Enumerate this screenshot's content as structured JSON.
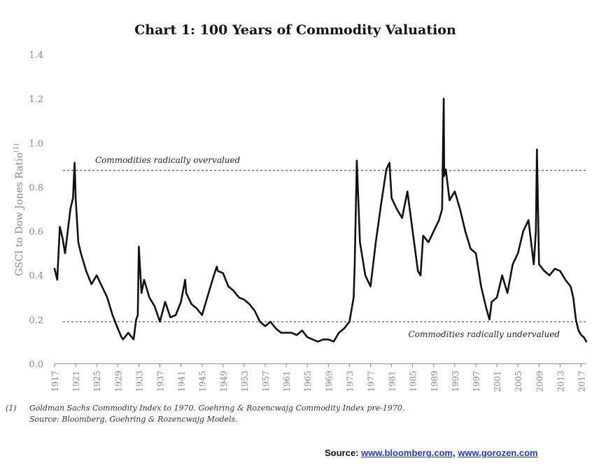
{
  "chart_data": {
    "type": "line",
    "title": "Chart 1: 100 Years of Commodity Valuation",
    "ylabel": "GSCI to Dow Jones Ratio",
    "ylabel_superscript": "(1)",
    "xlabel": "",
    "ylim": [
      0,
      1.4
    ],
    "xlim": [
      1917,
      2018
    ],
    "yticks": [
      "0.0",
      "0.2",
      "0.4",
      "0.6",
      "0.8",
      "1.0",
      "1.2",
      "1.4"
    ],
    "xticks": [
      "1917",
      "1921",
      "1925",
      "1929",
      "1933",
      "1937",
      "1941",
      "1945",
      "1949",
      "1953",
      "1957",
      "1961",
      "1965",
      "1969",
      "1973",
      "1977",
      "1981",
      "1985",
      "1989",
      "1993",
      "1997",
      "2001",
      "2005",
      "2009",
      "2013",
      "2017"
    ],
    "grid": false,
    "line_color": "#111111",
    "reference_lines": [
      {
        "value": 0.875,
        "label": "Commodities radically overvalued",
        "style": "dashed"
      },
      {
        "value": 0.19,
        "label": "Commodities radically undervalued",
        "style": "dashed"
      }
    ],
    "series": [
      {
        "x": [
          1917,
          1917.5,
          1918,
          1918.5,
          1919,
          1919.5,
          1920,
          1920.5,
          1920.8,
          1921,
          1921.5,
          1922,
          1923,
          1924,
          1925,
          1926,
          1927,
          1928,
          1929,
          1929.7,
          1930,
          1931,
          1932,
          1932.5,
          1932.8,
          1933,
          1933.5,
          1934,
          1935,
          1936,
          1937,
          1938,
          1939,
          1940,
          1941,
          1941.8,
          1942,
          1943,
          1944,
          1945,
          1946,
          1947,
          1947.8,
          1948,
          1949,
          1950,
          1951,
          1952,
          1953,
          1954,
          1955,
          1956,
          1957,
          1958,
          1959,
          1960,
          1961,
          1962,
          1963,
          1964,
          1965,
          1966,
          1967,
          1968,
          1969,
          1970,
          1971,
          1972,
          1973,
          1973.8,
          1974,
          1974.4,
          1975,
          1976,
          1977,
          1978,
          1979,
          1980,
          1980.6,
          1981,
          1982,
          1983,
          1984,
          1985,
          1986,
          1986.5,
          1987,
          1988,
          1989,
          1990,
          1990.6,
          1990.9,
          1991,
          1991.3,
          1992,
          1993,
          1994,
          1995,
          1996,
          1997,
          1998,
          1999,
          1999.6,
          2000,
          2001,
          2002,
          2003,
          2004,
          2005,
          2006,
          2007,
          2008,
          2008.4,
          2008.6,
          2009,
          2010,
          2011,
          2012,
          2013,
          2014,
          2015,
          2015.5,
          2016,
          2016.5,
          2017,
          2017.5,
          2018
        ],
        "y": [
          0.43,
          0.38,
          0.62,
          0.57,
          0.5,
          0.6,
          0.7,
          0.75,
          0.91,
          0.75,
          0.55,
          0.5,
          0.42,
          0.36,
          0.4,
          0.35,
          0.3,
          0.22,
          0.16,
          0.12,
          0.11,
          0.14,
          0.11,
          0.2,
          0.22,
          0.53,
          0.32,
          0.38,
          0.3,
          0.26,
          0.19,
          0.28,
          0.21,
          0.22,
          0.28,
          0.38,
          0.32,
          0.27,
          0.25,
          0.22,
          0.3,
          0.38,
          0.44,
          0.42,
          0.41,
          0.35,
          0.33,
          0.3,
          0.29,
          0.27,
          0.24,
          0.19,
          0.17,
          0.19,
          0.16,
          0.14,
          0.14,
          0.14,
          0.13,
          0.15,
          0.12,
          0.11,
          0.1,
          0.11,
          0.11,
          0.1,
          0.14,
          0.16,
          0.19,
          0.3,
          0.45,
          0.92,
          0.55,
          0.4,
          0.35,
          0.55,
          0.72,
          0.88,
          0.91,
          0.75,
          0.7,
          0.66,
          0.78,
          0.6,
          0.42,
          0.4,
          0.58,
          0.55,
          0.6,
          0.65,
          0.7,
          1.2,
          0.85,
          0.88,
          0.74,
          0.78,
          0.7,
          0.6,
          0.52,
          0.5,
          0.35,
          0.25,
          0.2,
          0.28,
          0.3,
          0.4,
          0.32,
          0.45,
          0.5,
          0.6,
          0.65,
          0.45,
          0.6,
          0.97,
          0.45,
          0.42,
          0.4,
          0.43,
          0.42,
          0.38,
          0.35,
          0.3,
          0.2,
          0.15,
          0.13,
          0.12,
          0.1
        ]
      }
    ]
  },
  "footnote": {
    "number": "(1)",
    "line1": "Goldman Sachs Commodity Index to 1970.  Goehring & Rozencwajg Commodity Index pre-1970.",
    "line2": "Source: Bloomberg, Goehring & Rozencwajg Models."
  },
  "source": {
    "prefix": "Source: ",
    "link1": "www.bloomberg.com",
    "separator": ", ",
    "link2": "www.gorozen.com"
  }
}
